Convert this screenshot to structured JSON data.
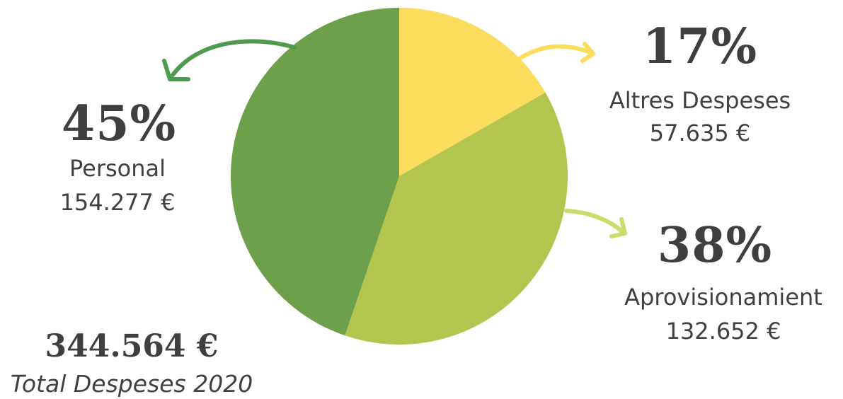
{
  "chart_data": {
    "type": "pie",
    "slices": [
      {
        "label": "Altres Despeses",
        "percent_label": "17%",
        "value": 57635,
        "value_label": "57.635 €",
        "color": "#fcdc5c"
      },
      {
        "label": "Aprovisionamient",
        "percent_label": "38%",
        "value": 132652,
        "value_label": "132.652 €",
        "color": "#b3c44f"
      },
      {
        "label": "Personal",
        "percent_label": "45%",
        "value": 154277,
        "value_label": "154.277 €",
        "color": "#6ca04b"
      }
    ],
    "total": {
      "value": 344564,
      "value_label": "344.564 €",
      "label": "Total Despeses 2020"
    },
    "arrow_colors": {
      "Altres Despeses": "#fcdc5c",
      "Aprovisionamient": "#c9dc6c",
      "Personal": "#4e9a4f"
    }
  }
}
